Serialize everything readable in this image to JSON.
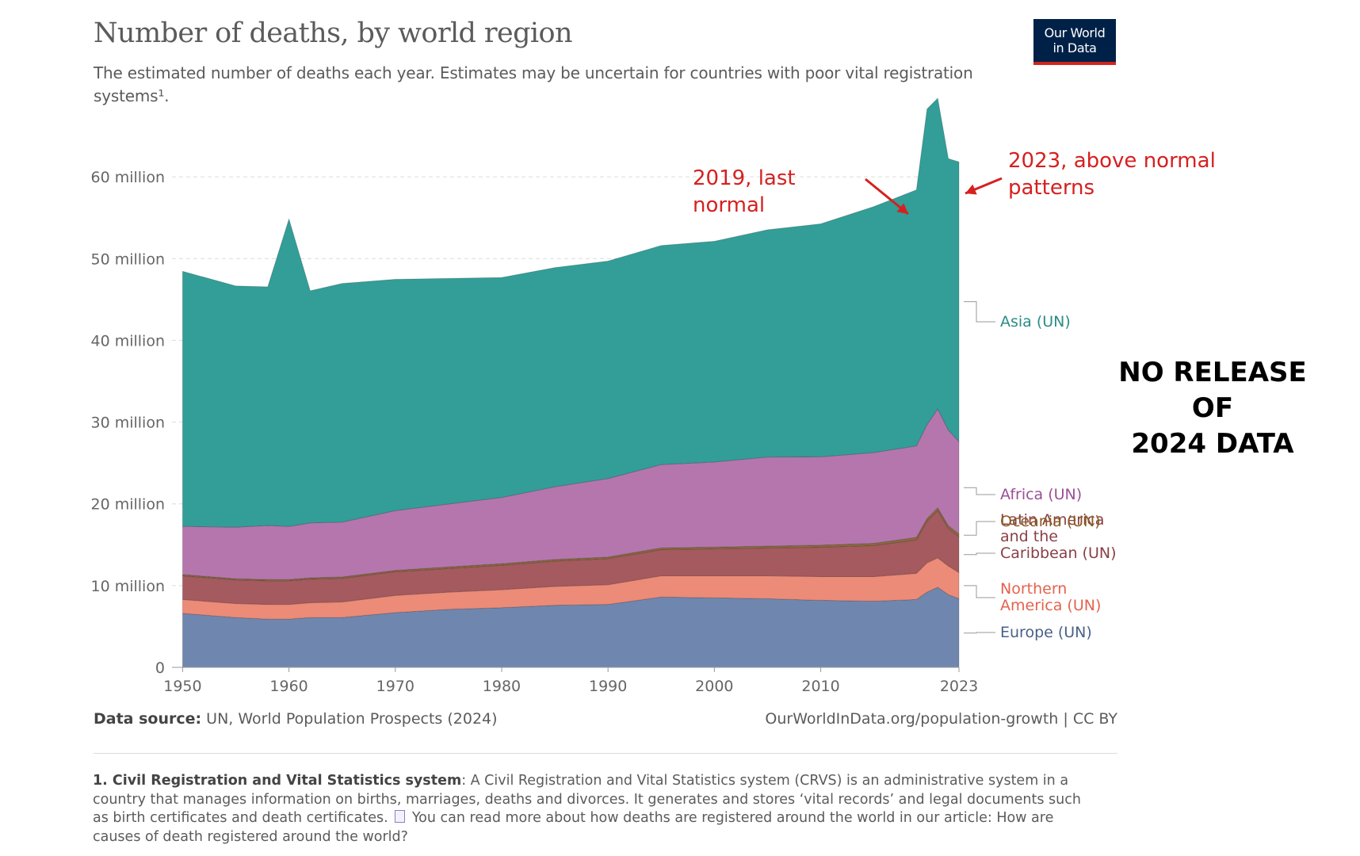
{
  "title": "Number of deaths, by world region",
  "subtitle": "The estimated number of deaths each year. Estimates may be uncertain for countries with poor vital registration systems¹.",
  "logo": {
    "line1": "Our World",
    "line2": "in Data"
  },
  "annotations": {
    "left": [
      "2019, last",
      "normal"
    ],
    "right": [
      "2023, above normal",
      "patterns"
    ],
    "stamp": [
      "NO RELEASE",
      "OF",
      "2024 DATA"
    ]
  },
  "footer": {
    "source_label": "Data source:",
    "source_text": "UN, World Population Prospects (2024)",
    "url": "OurWorldInData.org/population-growth | CC BY",
    "note_label": "1. Civil Registration and Vital Statistics system",
    "note_text": ": A Civil Registration and Vital Statistics system (CRVS) is an administrative system in a country that manages information on births, marriages, deaths and divorces. It generates and stores ‘vital records’ and legal documents such as birth certificates and death certificates.",
    "note_link": "You can read more about how deaths are registered around the world in our article: How are causes of death registered around the world?"
  },
  "chart_data": {
    "type": "area",
    "stacked": true,
    "x_ticks": [
      "1950",
      "1960",
      "1970",
      "1980",
      "1990",
      "2000",
      "2010",
      "2023"
    ],
    "y_ticks": [
      "0",
      "10 million",
      "20 million",
      "30 million",
      "40 million",
      "50 million",
      "60 million"
    ],
    "ylim": [
      0,
      70000000
    ],
    "grid": "horizontal dashed",
    "legend": "right, labels at end of areas",
    "x": [
      1950,
      1955,
      1958,
      1960,
      1962,
      1965,
      1970,
      1975,
      1980,
      1985,
      1990,
      1995,
      2000,
      2005,
      2010,
      2015,
      2019,
      2020,
      2021,
      2022,
      2023
    ],
    "series": [
      {
        "name": "Europe (UN)",
        "color": "#6f87af",
        "values": [
          6.6,
          6.1,
          5.9,
          5.9,
          6.1,
          6.1,
          6.7,
          7.1,
          7.3,
          7.6,
          7.7,
          8.6,
          8.5,
          8.4,
          8.2,
          8.1,
          8.3,
          9.2,
          9.8,
          8.9,
          8.4
        ]
      },
      {
        "name": "Northern America (UN)",
        "color": "#ec8b78",
        "values": [
          1.7,
          1.7,
          1.8,
          1.8,
          1.8,
          1.9,
          2.1,
          2.1,
          2.2,
          2.3,
          2.4,
          2.6,
          2.7,
          2.8,
          2.9,
          3.0,
          3.2,
          3.6,
          3.6,
          3.5,
          3.2
        ]
      },
      {
        "name": "Latin America and the Caribbean (UN)",
        "color": "#a45a5e",
        "values": [
          2.9,
          2.9,
          2.9,
          2.9,
          2.9,
          2.9,
          2.9,
          2.9,
          3.0,
          3.1,
          3.2,
          3.2,
          3.3,
          3.4,
          3.6,
          3.8,
          4.1,
          5.1,
          5.8,
          4.6,
          4.4
        ]
      },
      {
        "name": "Oceania (UN)",
        "color": "#8a6d3b",
        "values": [
          0.15,
          0.15,
          0.15,
          0.15,
          0.16,
          0.16,
          0.17,
          0.18,
          0.19,
          0.2,
          0.2,
          0.21,
          0.22,
          0.23,
          0.25,
          0.27,
          0.3,
          0.3,
          0.32,
          0.33,
          0.33
        ]
      },
      {
        "name": "Africa (UN)",
        "color": "#b576ae",
        "values": [
          5.9,
          6.3,
          6.6,
          6.5,
          6.7,
          6.7,
          7.3,
          7.7,
          8.1,
          8.9,
          9.6,
          10.2,
          10.4,
          10.9,
          10.8,
          11.1,
          11.2,
          11.5,
          12.1,
          11.7,
          11.3
        ]
      },
      {
        "name": "Asia (UN)",
        "color": "#329e97",
        "values": [
          31.2,
          29.5,
          29.2,
          37.6,
          28.4,
          29.2,
          28.3,
          27.6,
          26.9,
          26.8,
          26.6,
          26.8,
          27.0,
          27.8,
          28.5,
          30.1,
          31.3,
          38.6,
          38.0,
          33.2,
          34.2
        ]
      }
    ],
    "value_unit": "million"
  }
}
